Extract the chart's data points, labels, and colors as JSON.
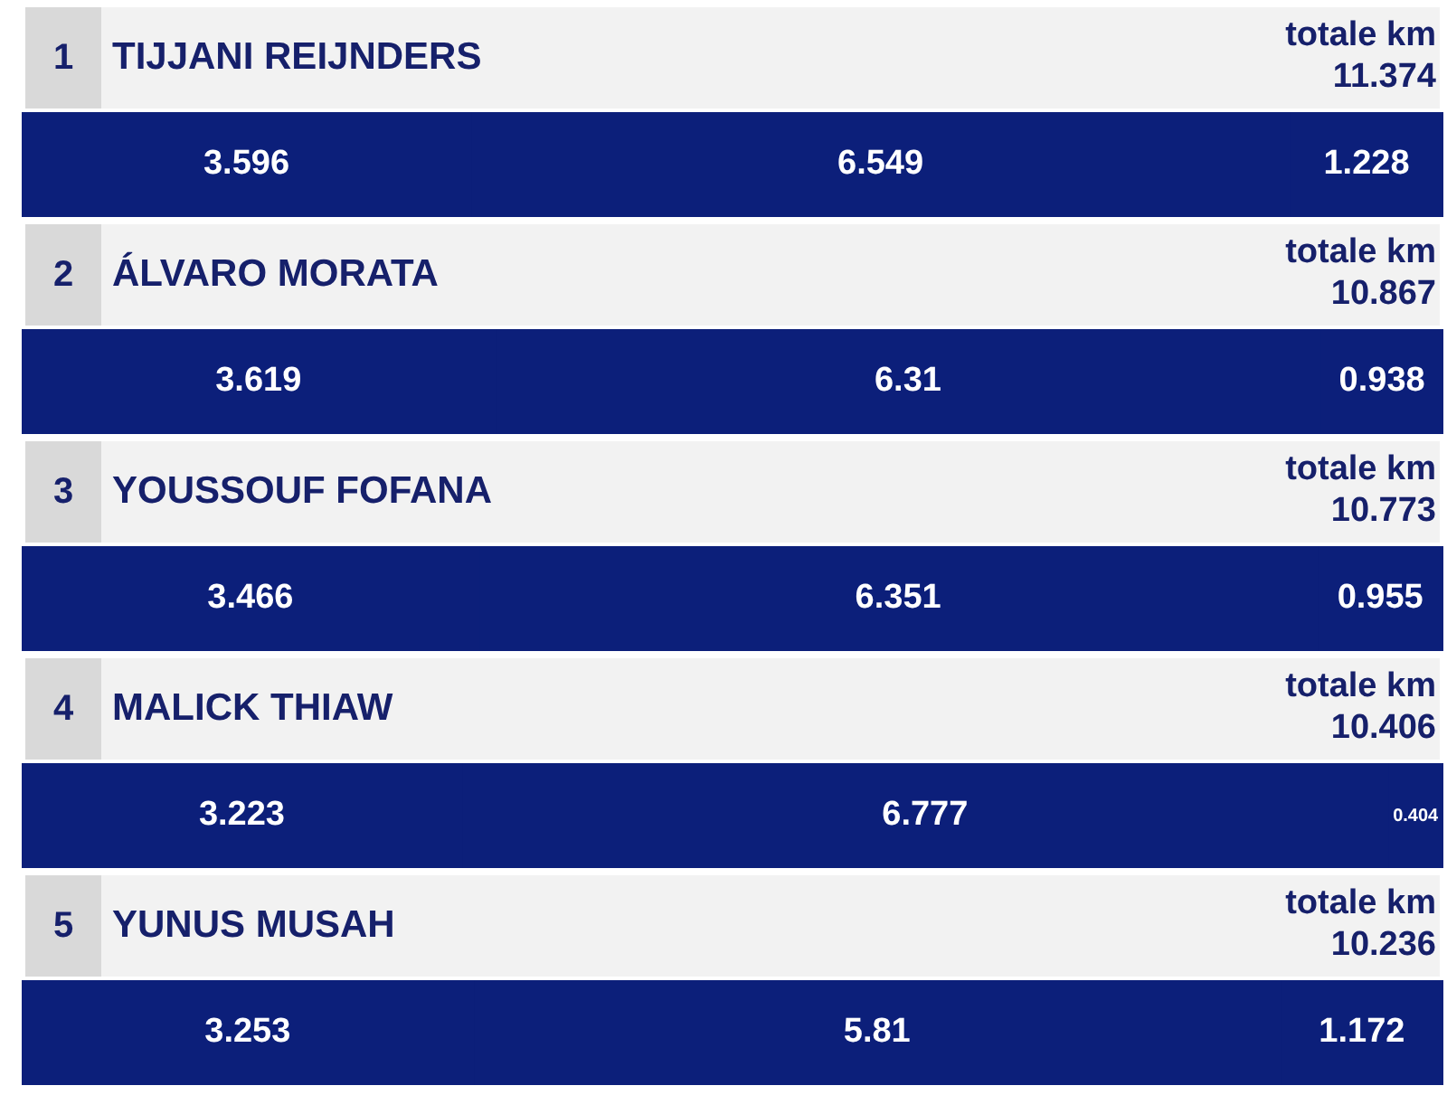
{
  "chart_data": [
    {
      "type": "bar",
      "orientation": "horizontal",
      "stacked": true,
      "title": "TIJJANI REIJNDERS",
      "annotations": [
        "1",
        "totale km"
      ],
      "totals": [
        "11.374"
      ],
      "categories": [
        null
      ],
      "xlim": [
        0,
        11.374
      ],
      "tick_labels": false,
      "data_labels": true,
      "series": [
        {
          "color": "#0c1f7a",
          "values": [
            3.596
          ]
        },
        {
          "color": "#0c1f7a",
          "values": [
            6.549
          ]
        },
        {
          "color": "#0c1f7a",
          "values": [
            1.228
          ]
        }
      ]
    },
    {
      "type": "bar",
      "orientation": "horizontal",
      "stacked": true,
      "title": "ÁLVARO MORATA",
      "annotations": [
        "2",
        "totale km"
      ],
      "totals": [
        "10.867"
      ],
      "categories": [
        null
      ],
      "xlim": [
        0,
        10.867
      ],
      "tick_labels": false,
      "data_labels": true,
      "series": [
        {
          "color": "#0c1f7a",
          "values": [
            3.619
          ]
        },
        {
          "color": "#0c1f7a",
          "values": [
            6.31
          ]
        },
        {
          "color": "#0c1f7a",
          "values": [
            0.938
          ]
        }
      ]
    },
    {
      "type": "bar",
      "orientation": "horizontal",
      "stacked": true,
      "title": "YOUSSOUF FOFANA",
      "annotations": [
        "3",
        "totale km"
      ],
      "totals": [
        "10.773"
      ],
      "categories": [
        null
      ],
      "xlim": [
        0,
        10.773
      ],
      "tick_labels": false,
      "data_labels": true,
      "series": [
        {
          "color": "#0c1f7a",
          "values": [
            3.466
          ]
        },
        {
          "color": "#0c1f7a",
          "values": [
            6.351
          ]
        },
        {
          "color": "#0c1f7a",
          "values": [
            0.955
          ]
        }
      ]
    },
    {
      "type": "bar",
      "orientation": "horizontal",
      "stacked": true,
      "title": "MALICK THIAW",
      "annotations": [
        "4",
        "totale km",
        "10.406"
      ],
      "categories": [
        null
      ],
      "xlim": [
        0,
        10.406
      ],
      "tick_labels": false,
      "data_labels": true,
      "series": [
        {
          "color": "#0c1f7a",
          "values": [
            3.223
          ]
        },
        {
          "color": "#0c1f7a",
          "values": [
            6.777
          ]
        },
        {
          "color": "#0c1f7a",
          "values": [
            0.404
          ]
        }
      ]
    },
    {
      "type": "bar",
      "orientation": "horizontal",
      "stacked": true,
      "title": "YUNUS MUSAH",
      "annotations": [
        "5",
        "totale km"
      ],
      "totals": [
        "10.236"
      ],
      "categories": [
        null
      ],
      "xlim": [
        0,
        10.236
      ],
      "tick_labels": false,
      "data_labels": true,
      "series": [
        {
          "color": "#0c1f7a",
          "values": [
            3.253
          ]
        },
        {
          "color": "#0c1f7a",
          "values": [
            5.81
          ]
        },
        {
          "color": "#0c1f7a",
          "values": [
            1.172
          ]
        }
      ]
    }
  ]
}
